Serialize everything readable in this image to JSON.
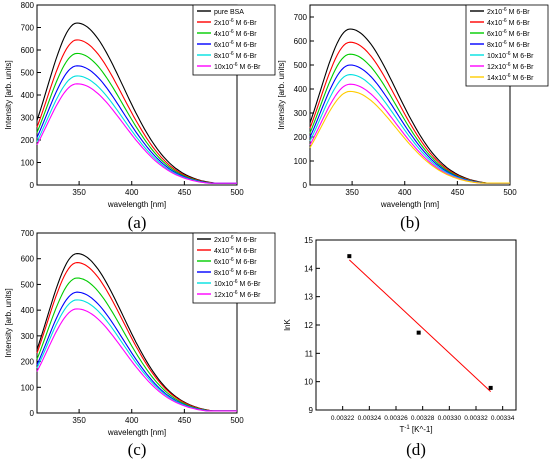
{
  "figure": {
    "panel_labels": [
      "(a)",
      "(b)",
      "(c)",
      "(d)"
    ]
  },
  "chart_data": [
    {
      "panel": "(a)",
      "type": "line",
      "xlabel": "wavelength [nm]",
      "ylabel": "Intensity [arb. units]",
      "xlim": [
        310,
        500
      ],
      "ylim": [
        0,
        800
      ],
      "xticks": [
        350,
        400,
        450,
        500
      ],
      "yticks": [
        0,
        100,
        200,
        300,
        400,
        500,
        600,
        700,
        800
      ],
      "legend_position": "top-right",
      "series": [
        {
          "name": "pure BSA",
          "color": "#000000",
          "peak": 720
        },
        {
          "name": "2x10^-6 M 6-Br",
          "color": "#ff0000",
          "peak": 645
        },
        {
          "name": "4x10^-6 M 6-Br",
          "color": "#00cc00",
          "peak": 585
        },
        {
          "name": "6x10^-6 M 6-Br",
          "color": "#0000ff",
          "peak": 530
        },
        {
          "name": "8x10^-6 M 6-Br",
          "color": "#00e0e0",
          "peak": 485
        },
        {
          "name": "10x10^-6 M 6-Br",
          "color": "#ff00ff",
          "peak": 450
        }
      ]
    },
    {
      "panel": "(b)",
      "type": "line",
      "xlabel": "wavelength [nm]",
      "ylabel": "Intensity [arb. units]",
      "xlim": [
        310,
        500
      ],
      "ylim": [
        0,
        750
      ],
      "xticks": [
        350,
        400,
        450,
        500
      ],
      "yticks": [
        0,
        100,
        200,
        300,
        400,
        500,
        600,
        700
      ],
      "legend_position": "top-right",
      "series": [
        {
          "name": "2x10^-6 M 6-Br",
          "color": "#000000",
          "peak": 650
        },
        {
          "name": "4x10^-6 M 6-Br",
          "color": "#ff0000",
          "peak": 595
        },
        {
          "name": "6x10^-6 M 6-Br",
          "color": "#00cc00",
          "peak": 545
        },
        {
          "name": "8x10^-6 M 6-Br",
          "color": "#0000ff",
          "peak": 500
        },
        {
          "name": "10x10^-6 M 6-Br",
          "color": "#00e0e0",
          "peak": 460
        },
        {
          "name": "12x10^-6 M 6-Br",
          "color": "#ff00ff",
          "peak": 420
        },
        {
          "name": "14x10^-6 M 6-Br",
          "color": "#ffcc00",
          "peak": 390
        }
      ]
    },
    {
      "panel": "(c)",
      "type": "line",
      "xlabel": "wavelength [nm]",
      "ylabel": "Intensity [arb. units]",
      "xlim": [
        310,
        500
      ],
      "ylim": [
        0,
        700
      ],
      "xticks": [
        350,
        400,
        450,
        500
      ],
      "yticks": [
        0,
        100,
        200,
        300,
        400,
        500,
        600,
        700
      ],
      "legend_position": "top-right",
      "series": [
        {
          "name": "2x10^-6 M 6-Br",
          "color": "#000000",
          "peak": 620
        },
        {
          "name": "4x10^-6 M 6-Br",
          "color": "#ff0000",
          "peak": 585
        },
        {
          "name": "6x10^-6 M 6-Br",
          "color": "#00cc00",
          "peak": 525
        },
        {
          "name": "8x10^-6 M 6-Br",
          "color": "#0000ff",
          "peak": 470
        },
        {
          "name": "10x10^-6 M 6-Br",
          "color": "#00e0e0",
          "peak": 440
        },
        {
          "name": "12x10^-6 M 6-Br",
          "color": "#ff00ff",
          "peak": 405
        }
      ]
    },
    {
      "panel": "(d)",
      "type": "scatter",
      "xlabel": "T^-1 [K^-1]",
      "ylabel": "lnK",
      "xlim": [
        0.0032,
        0.00335
      ],
      "ylim": [
        9,
        15
      ],
      "xticks": [
        0.00322,
        0.00324,
        0.00326,
        0.00328,
        0.0033,
        0.00332,
        0.00334
      ],
      "xtick_labels": [
        "0.00322",
        "0.00324",
        "0.00326",
        "0.00328",
        "0.00330",
        "0.00332",
        "0.00334"
      ],
      "yticks": [
        9,
        10,
        11,
        12,
        13,
        14,
        15
      ],
      "points": [
        {
          "x": 0.003225,
          "y": 14.43
        },
        {
          "x": 0.003277,
          "y": 11.73
        },
        {
          "x": 0.003331,
          "y": 9.78
        }
      ],
      "fit_line": {
        "color": "#ff0000",
        "x": [
          0.003225,
          0.003331
        ],
        "y": [
          14.3,
          9.65
        ]
      }
    }
  ]
}
